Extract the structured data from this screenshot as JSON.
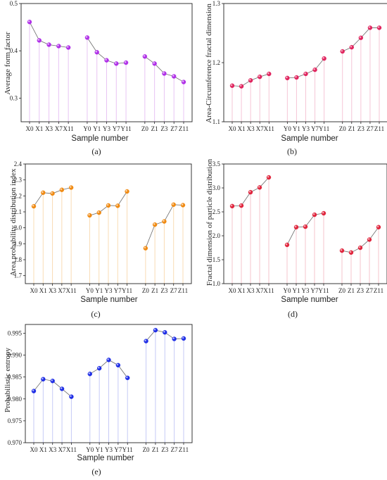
{
  "chart_data": [
    {
      "id": "a",
      "type": "scatter",
      "caption": "(a)",
      "xlabel": "Sample number",
      "ylabel": "Average form factor",
      "categories": [
        "X0",
        "X1",
        "X3",
        "X7",
        "X11",
        "Y0",
        "Y1",
        "Y3",
        "Y7",
        "Y11",
        "Z0",
        "Z1",
        "Z3",
        "Z7",
        "Z11"
      ],
      "groups": [
        [
          0,
          1,
          2,
          3,
          4
        ],
        [
          5,
          6,
          7,
          8,
          9
        ],
        [
          10,
          11,
          12,
          13,
          14
        ]
      ],
      "values": [
        0.461,
        0.422,
        0.413,
        0.41,
        0.407,
        0.428,
        0.397,
        0.38,
        0.373,
        0.375,
        0.388,
        0.373,
        0.352,
        0.346,
        0.334
      ],
      "ylim": [
        0.25,
        0.5
      ],
      "yticks": [
        0.3,
        0.4,
        0.5
      ],
      "ytick_labels": [
        "0.3",
        "0.4",
        "0.5"
      ],
      "color": "#b030e8",
      "stem_color": "#e8c4f4"
    },
    {
      "id": "b",
      "type": "scatter",
      "caption": "(b)",
      "xlabel": "Sample number",
      "ylabel": "Area-Circumference fractal dimension",
      "categories": [
        "X0",
        "X1",
        "X3",
        "X7",
        "X11",
        "Y0",
        "Y1",
        "Y3",
        "Y7",
        "Y11",
        "Z0",
        "Z1",
        "Z3",
        "Z7",
        "Z11"
      ],
      "groups": [
        [
          0,
          1,
          2,
          3,
          4
        ],
        [
          5,
          6,
          7,
          8,
          9
        ],
        [
          10,
          11,
          12,
          13,
          14
        ]
      ],
      "values": [
        1.161,
        1.16,
        1.17,
        1.176,
        1.181,
        1.174,
        1.175,
        1.181,
        1.188,
        1.207,
        1.219,
        1.226,
        1.242,
        1.259,
        1.259
      ],
      "ylim": [
        1.1,
        1.3
      ],
      "yticks": [
        1.1,
        1.2,
        1.3
      ],
      "ytick_labels": [
        "1.1",
        "1.2",
        "1.3"
      ],
      "color": "#e0245e",
      "stem_color": "#f6c6d6"
    },
    {
      "id": "c",
      "type": "scatter",
      "caption": "(c)",
      "xlabel": "Sample number",
      "ylabel": "Area probability distribution index",
      "categories": [
        "X0",
        "X1",
        "X3",
        "X7",
        "X11",
        "Y0",
        "Y1",
        "Y3",
        "Y7",
        "Y11",
        "Z0",
        "Z1",
        "Z3",
        "Z7",
        "Z11"
      ],
      "groups": [
        [
          0,
          1,
          2,
          3,
          4
        ],
        [
          5,
          6,
          7,
          8,
          9
        ],
        [
          10,
          11,
          12,
          13,
          14
        ]
      ],
      "values": [
        2.135,
        2.22,
        2.215,
        2.238,
        2.252,
        2.078,
        2.095,
        2.14,
        2.138,
        2.228,
        1.872,
        2.02,
        2.04,
        2.145,
        2.142
      ],
      "ylim": [
        1.65,
        2.4
      ],
      "yticks": [
        1.7,
        1.8,
        1.9,
        2.0,
        2.1,
        2.2,
        2.3,
        2.4
      ],
      "ytick_labels": [
        "1.7",
        "1.8",
        "1.9",
        "2.0",
        "2.1",
        "2.2",
        "2.3",
        "2.4"
      ],
      "color": "#f08a12",
      "stem_color": "#f9dcb4"
    },
    {
      "id": "d",
      "type": "scatter",
      "caption": "(d)",
      "xlabel": "Sample number",
      "ylabel": "Fractal dimension of particle distribution",
      "categories": [
        "X0",
        "X1",
        "X3",
        "X7",
        "X11",
        "Y0",
        "Y1",
        "Y3",
        "Y7",
        "Y11",
        "Z0",
        "Z1",
        "Z3",
        "Z7",
        "Z11"
      ],
      "groups": [
        [
          0,
          1,
          2,
          3,
          4
        ],
        [
          5,
          6,
          7,
          8,
          9
        ],
        [
          10,
          11,
          12,
          13,
          14
        ]
      ],
      "values": [
        2.62,
        2.63,
        2.91,
        3.01,
        3.22,
        1.81,
        2.18,
        2.19,
        2.44,
        2.47,
        1.69,
        1.65,
        1.75,
        1.92,
        2.18
      ],
      "ylim": [
        1.0,
        3.5
      ],
      "yticks": [
        1.0,
        1.5,
        2.0,
        2.5,
        3.0,
        3.5
      ],
      "ytick_labels": [
        "1.0",
        "1.5",
        "2.0",
        "2.5",
        "3.0",
        "3.5"
      ],
      "color": "#e0243c",
      "stem_color": "#f6c6cc"
    },
    {
      "id": "e",
      "type": "scatter",
      "caption": "(e)",
      "xlabel": "Sample number",
      "ylabel": "Probabilistic entropy",
      "categories": [
        "X0",
        "X1",
        "X3",
        "X7",
        "X11",
        "Y0",
        "Y1",
        "Y3",
        "Y7",
        "Y11",
        "Z0",
        "Z1",
        "Z3",
        "Z7",
        "Z11"
      ],
      "groups": [
        [
          0,
          1,
          2,
          3,
          4
        ],
        [
          5,
          6,
          7,
          8,
          9
        ],
        [
          10,
          11,
          12,
          13,
          14
        ]
      ],
      "values": [
        0.9818,
        0.9845,
        0.9841,
        0.9823,
        0.9805,
        0.9857,
        0.987,
        0.9889,
        0.9877,
        0.9848,
        0.9932,
        0.9957,
        0.9952,
        0.9937,
        0.9938
      ],
      "ylim": [
        0.97,
        0.997
      ],
      "yticks": [
        0.97,
        0.975,
        0.98,
        0.985,
        0.99,
        0.995
      ],
      "ytick_labels": [
        "0.970",
        "0.975",
        "0.980",
        "0.985",
        "0.990",
        "0.995"
      ],
      "color": "#1f2ee6",
      "stem_color": "#c6caf6"
    }
  ]
}
